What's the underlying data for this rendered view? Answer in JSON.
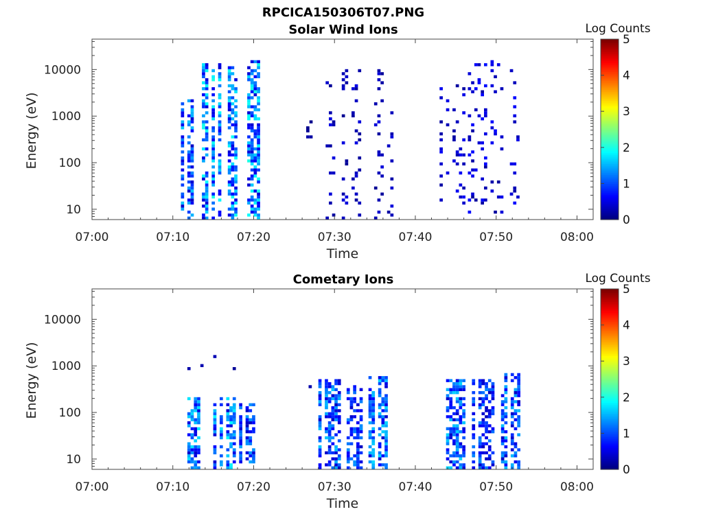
{
  "figure_title": "RPCICA150306T07.PNG",
  "colormap": [
    "#00007f",
    "#0000ff",
    "#007fff",
    "#00ffff",
    "#7fff7f",
    "#ffff00",
    "#ff7f00",
    "#ff0000",
    "#7f0000"
  ],
  "chart_data": [
    {
      "type": "heatmap",
      "title": "Solar Wind Ions",
      "xlabel": "Time",
      "ylabel": "Energy (eV)",
      "x_tick_labels": [
        "07:00",
        "07:10",
        "07:20",
        "07:30",
        "07:40",
        "07:50",
        "08:00"
      ],
      "x_range_minutes": [
        0,
        62
      ],
      "y_scale": "log",
      "y_tick_labels": [
        "10",
        "100",
        "1000",
        "10000"
      ],
      "y_range": [
        6,
        45000
      ],
      "colorbar_label": "Log Counts",
      "colorbar_ticks": [
        "0",
        "1",
        "2",
        "3",
        "4",
        "5"
      ],
      "colorbar_range": [
        0,
        5
      ],
      "bursts": [
        {
          "start_min": 11.0,
          "end_min": 12.5,
          "e_min": 6,
          "e_max": 2000,
          "peak": 1.6
        },
        {
          "start_min": 13.2,
          "end_min": 20.4,
          "e_min": 6,
          "e_max": 14000,
          "peak": 2.0
        },
        {
          "start_min": 26.5,
          "end_min": 27.3,
          "e_min": 300,
          "e_max": 800,
          "peak": 0.3
        },
        {
          "start_min": 28.5,
          "end_min": 33.5,
          "e_min": 6,
          "e_max": 10000,
          "peak": 0.5
        },
        {
          "start_min": 34.5,
          "end_min": 37.0,
          "e_min": 6,
          "e_max": 10000,
          "peak": 0.5
        },
        {
          "start_min": 43.0,
          "end_min": 46.5,
          "e_min": 8,
          "e_max": 5000,
          "peak": 0.6
        },
        {
          "start_min": 46.5,
          "end_min": 52.8,
          "e_min": 8,
          "e_max": 15000,
          "peak": 0.7
        }
      ]
    },
    {
      "type": "heatmap",
      "title": "Cometary Ions",
      "xlabel": "Time",
      "ylabel": "Energy (eV)",
      "x_tick_labels": [
        "07:00",
        "07:10",
        "07:20",
        "07:30",
        "07:40",
        "07:50",
        "08:00"
      ],
      "x_range_minutes": [
        0,
        62
      ],
      "y_scale": "log",
      "y_tick_labels": [
        "10",
        "100",
        "1000",
        "10000"
      ],
      "y_range": [
        6,
        45000
      ],
      "colorbar_label": "Log Counts",
      "colorbar_ticks": [
        "0",
        "1",
        "2",
        "3",
        "4",
        "5"
      ],
      "colorbar_range": [
        0,
        5
      ],
      "bursts": [
        {
          "start_min": 11.0,
          "end_min": 19.6,
          "e_min": 900,
          "e_max": 1700,
          "peak": 0.3
        },
        {
          "start_min": 11.8,
          "end_min": 13.2,
          "e_min": 6,
          "e_max": 200,
          "peak": 1.8
        },
        {
          "start_min": 15.0,
          "end_min": 17.4,
          "e_min": 6,
          "e_max": 200,
          "peak": 1.9
        },
        {
          "start_min": 18.2,
          "end_min": 20.2,
          "e_min": 8,
          "e_max": 150,
          "peak": 1.5
        },
        {
          "start_min": 26.8,
          "end_min": 27.3,
          "e_min": 300,
          "e_max": 550,
          "peak": 0.3
        },
        {
          "start_min": 28.0,
          "end_min": 30.8,
          "e_min": 6,
          "e_max": 500,
          "peak": 1.6
        },
        {
          "start_min": 31.5,
          "end_min": 33.2,
          "e_min": 6,
          "e_max": 400,
          "peak": 1.4
        },
        {
          "start_min": 34.2,
          "end_min": 36.5,
          "e_min": 6,
          "e_max": 550,
          "peak": 1.7
        },
        {
          "start_min": 43.8,
          "end_min": 46.0,
          "e_min": 6,
          "e_max": 500,
          "peak": 1.7
        },
        {
          "start_min": 47.0,
          "end_min": 49.4,
          "e_min": 6,
          "e_max": 500,
          "peak": 1.3
        },
        {
          "start_min": 50.6,
          "end_min": 52.8,
          "e_min": 6,
          "e_max": 650,
          "peak": 1.6
        }
      ]
    }
  ]
}
